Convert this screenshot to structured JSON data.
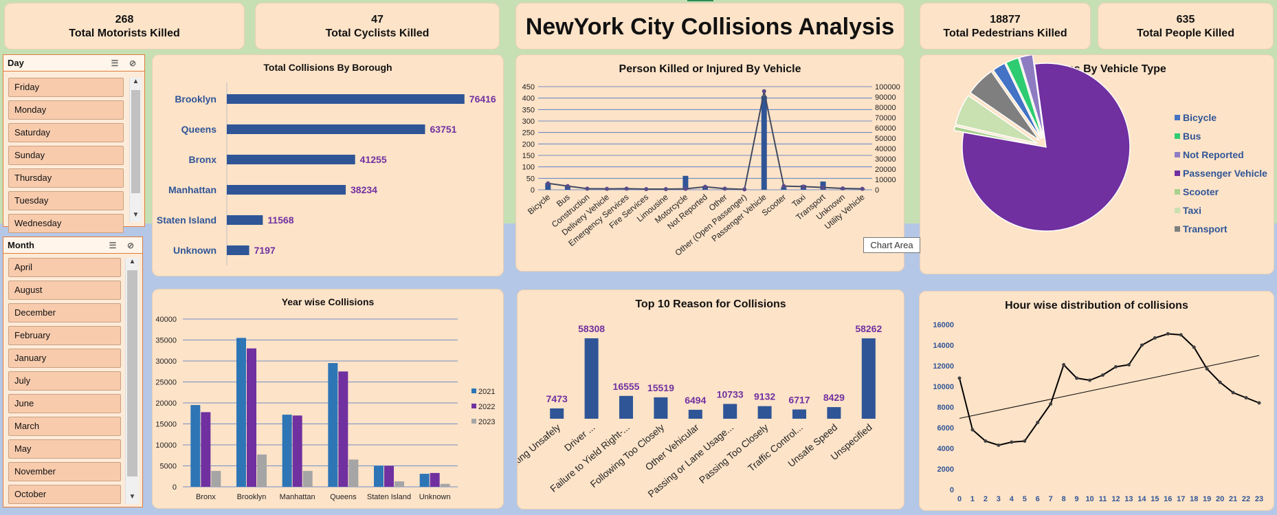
{
  "title": "NewYork City Collisions Analysis",
  "kpis": {
    "motorists": {
      "value": "268",
      "label": "Total Motorists Killed"
    },
    "cyclists": {
      "value": "47",
      "label": "Total Cyclists Killed"
    },
    "pedestrians": {
      "value": "18877",
      "label": "Total Pedestrians Killed"
    },
    "people": {
      "value": "635",
      "label": "Total People Killed"
    }
  },
  "slicers": {
    "day": {
      "title": "Day",
      "items": [
        "Friday",
        "Monday",
        "Saturday",
        "Sunday",
        "Thursday",
        "Tuesday",
        "Wednesday"
      ]
    },
    "month": {
      "title": "Month",
      "items": [
        "April",
        "August",
        "December",
        "February",
        "January",
        "July",
        "June",
        "March",
        "May",
        "November",
        "October"
      ]
    }
  },
  "tooltip": "Chart Area",
  "colors": {
    "bar_blue": "#2f5597",
    "label_purple": "#7030a0",
    "cat_blue": "#2f5597",
    "series_2021": "#2e75b6",
    "series_2022": "#7030a0",
    "series_2023": "#a5a5a5"
  },
  "chart_data": [
    {
      "type": "bar",
      "title": "Total Collisions By Borough",
      "orientation": "horizontal",
      "categories": [
        "Brooklyn",
        "Queens",
        "Bronx",
        "Manhattan",
        "Staten Island",
        "Unknown"
      ],
      "values": [
        76416,
        63751,
        41255,
        38234,
        11568,
        7197
      ]
    },
    {
      "type": "bar",
      "title": "Person Killed or Injured By Vehicle",
      "categories": [
        "Bicycle",
        "Bus",
        "Construction",
        "Delivery Vehicle",
        "Emergency Services",
        "Fire Services",
        "Limousine",
        "Motorcycle",
        "Not Reported",
        "Other",
        "Other (Open Passenger)",
        "Passenger Vehicle",
        "Scooter",
        "Taxi",
        "Transport",
        "Unknown",
        "Utility Vehicle"
      ],
      "left_axis": {
        "ticks": [
          0,
          50,
          100,
          150,
          200,
          250,
          300,
          350,
          400,
          450
        ],
        "ylim": [
          0,
          450
        ]
      },
      "right_axis": {
        "ticks": [
          0,
          10000,
          20000,
          30000,
          40000,
          50000,
          60000,
          70000,
          80000,
          90000,
          100000
        ],
        "ylim": [
          0,
          100000
        ]
      },
      "series": [
        {
          "type": "bar",
          "axis": "right",
          "values": [
            6500,
            4000,
            300,
            800,
            600,
            300,
            200,
            13500,
            3500,
            600,
            100,
            91000,
            2500,
            4500,
            8000,
            500,
            900
          ]
        },
        {
          "type": "line",
          "axis": "left",
          "values": [
            28,
            16,
            5,
            4,
            5,
            3,
            3,
            4,
            13,
            5,
            2,
            430,
            16,
            14,
            10,
            6,
            4
          ]
        }
      ]
    },
    {
      "type": "pie",
      "title": "Collisions By Vehicle Type",
      "categories": [
        "Bicycle",
        "Bus",
        "Not Reported",
        "Passenger Vehicle",
        "Scooter",
        "Taxi",
        "Transport"
      ],
      "values": [
        2.5,
        2.5,
        2.5,
        80,
        0.8,
        6,
        5.7
      ],
      "colors": [
        "#4472c4",
        "#2ecc71",
        "#8e7cc3",
        "#7030a0",
        "#a9d08e",
        "#c9e0b0",
        "#7f7f7f"
      ]
    },
    {
      "type": "bar",
      "title": "Year wise Collisions",
      "categories": [
        "Bronx",
        "Brooklyn",
        "Manhattan",
        "Queens",
        "Staten Island",
        "Unknown"
      ],
      "series": [
        {
          "name": "2021",
          "values": [
            19500,
            35500,
            17200,
            29500,
            5000,
            3100
          ]
        },
        {
          "name": "2022",
          "values": [
            17800,
            33000,
            17000,
            27500,
            5000,
            3300
          ]
        },
        {
          "name": "2023",
          "values": [
            3800,
            7700,
            3800,
            6500,
            1300,
            700
          ]
        }
      ],
      "yticks": [
        0,
        5000,
        10000,
        15000,
        20000,
        25000,
        30000,
        35000,
        40000
      ],
      "ylim": [
        0,
        40000
      ]
    },
    {
      "type": "bar",
      "title": "Top 10 Reason for Collisions",
      "categories": [
        "Backing Unsafely",
        "Driver ...",
        "Failure to Yield Right-...",
        "Following Too Closely",
        "Other Vehicular",
        "Passing or Lane Usage...",
        "Passing Too Closely",
        "Traffic Control...",
        "Unsafe Speed",
        "Unspecified"
      ],
      "values": [
        7473,
        58308,
        16555,
        15519,
        6494,
        10733,
        9132,
        6717,
        8429,
        58262
      ]
    },
    {
      "type": "line",
      "title": "Hour wise distribution of collisions",
      "x": [
        0,
        1,
        2,
        3,
        4,
        5,
        6,
        7,
        8,
        9,
        10,
        11,
        12,
        13,
        14,
        15,
        16,
        17,
        18,
        19,
        20,
        21,
        22,
        23
      ],
      "values": [
        10800,
        5800,
        4700,
        4300,
        4600,
        4700,
        6500,
        8300,
        12100,
        10800,
        10600,
        11100,
        11900,
        12100,
        14000,
        14700,
        15100,
        15000,
        13800,
        11700,
        10400,
        9400,
        8900,
        8400
      ],
      "trendline": [
        6900,
        13000
      ],
      "yticks": [
        0,
        2000,
        4000,
        6000,
        8000,
        10000,
        12000,
        14000,
        16000
      ],
      "ylim": [
        0,
        16000
      ]
    }
  ]
}
